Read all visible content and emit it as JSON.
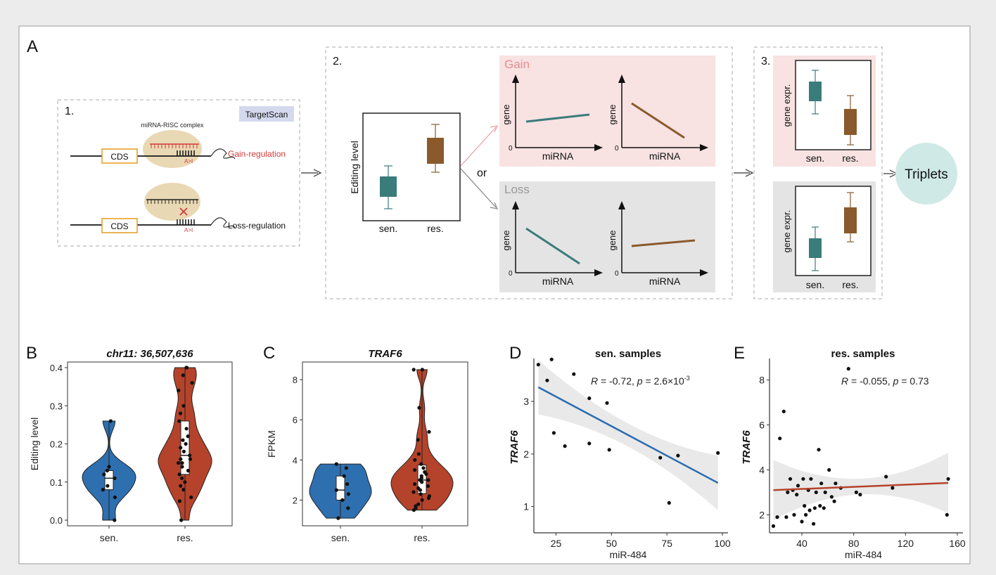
{
  "panelA": {
    "label": "A",
    "box1": {
      "step": "1.",
      "badge": "TargetScan",
      "complex_label": "miRNA-RISC complex",
      "cds": "CDS",
      "ai": "A>I",
      "gain_label": "Gain-regulation",
      "loss_label": "Loss-regulation"
    },
    "box2": {
      "step": "2.",
      "ylabel": "Editing level",
      "x_sen": "sen.",
      "x_res": "res.",
      "or": "or",
      "gain_title": "Gain",
      "loss_title": "Loss",
      "gene": "gene",
      "mirna": "miRNA",
      "zero": "0"
    },
    "box3": {
      "step": "3.",
      "ylabel": "gene expr.",
      "x_sen": "sen.",
      "x_res": "res."
    },
    "triplets": "Triplets"
  },
  "chart_data": [
    {
      "panel": "B",
      "type": "violin",
      "title": "chr11: 36,507,636",
      "ylabel": "Editing level",
      "categories": [
        "sen.",
        "res."
      ],
      "ylim": [
        0,
        0.4
      ],
      "yticks": [
        0.0,
        0.1,
        0.2,
        0.3,
        0.4
      ],
      "ytick_labels": [
        "0.0",
        "0.1",
        "0.2",
        "0.3",
        "0.4"
      ],
      "colors": {
        "sen.": "#2e6fb0",
        "res.": "#b5432b"
      },
      "points": {
        "sen.": [
          0.0,
          0.06,
          0.08,
          0.09,
          0.11,
          0.12,
          0.13,
          0.14,
          0.26
        ],
        "res.": [
          0.0,
          0.05,
          0.06,
          0.08,
          0.09,
          0.1,
          0.11,
          0.12,
          0.13,
          0.14,
          0.15,
          0.15,
          0.16,
          0.16,
          0.17,
          0.18,
          0.19,
          0.2,
          0.21,
          0.22,
          0.24,
          0.26,
          0.28,
          0.3,
          0.34,
          0.36,
          0.38,
          0.4,
          0.4
        ]
      }
    },
    {
      "panel": "C",
      "type": "violin",
      "title": "TRAF6",
      "ylabel": "FPKM",
      "categories": [
        "sen.",
        "res."
      ],
      "ylim": [
        1,
        8.6
      ],
      "yticks": [
        2,
        4,
        6,
        8
      ],
      "ytick_labels": [
        "2",
        "4",
        "6",
        "8"
      ],
      "colors": {
        "sen.": "#2e6fb0",
        "res.": "#b5432b"
      },
      "points": {
        "sen.": [
          1.1,
          1.6,
          2.0,
          2.3,
          2.5,
          2.8,
          3.2,
          3.6,
          3.8
        ],
        "res.": [
          1.5,
          1.6,
          1.7,
          1.8,
          2.0,
          2.1,
          2.2,
          2.3,
          2.4,
          2.5,
          2.6,
          2.7,
          2.8,
          2.9,
          3.0,
          3.0,
          3.1,
          3.2,
          3.3,
          3.4,
          3.5,
          3.6,
          3.8,
          4.0,
          4.3,
          5.0,
          5.4,
          6.6,
          8.5,
          8.5
        ]
      }
    },
    {
      "panel": "D",
      "type": "scatter",
      "title": "sen. samples",
      "xlabel": "miR-484",
      "ylabel": "TRAF6",
      "stat_r": "-0.72",
      "stat_p": "2.6×10",
      "stat_exp": "-3",
      "xlim": [
        15,
        100
      ],
      "ylim": [
        0.5,
        3.75
      ],
      "xticks": [
        25,
        50,
        75,
        100
      ],
      "yticks": [
        1,
        2,
        3
      ],
      "points": [
        [
          17,
          3.7
        ],
        [
          21,
          3.4
        ],
        [
          23,
          3.8
        ],
        [
          24,
          2.4
        ],
        [
          29,
          2.15
        ],
        [
          33,
          3.52
        ],
        [
          40,
          3.06
        ],
        [
          40,
          2.2
        ],
        [
          48,
          2.97
        ],
        [
          49,
          2.08
        ],
        [
          72,
          1.93
        ],
        [
          76,
          1.07
        ],
        [
          80,
          1.97
        ],
        [
          98,
          2.02
        ]
      ],
      "fit": {
        "x": [
          17,
          98
        ],
        "y": [
          3.27,
          1.45
        ]
      },
      "line_color": "#2b6cb0"
    },
    {
      "panel": "E",
      "type": "scatter",
      "title": "res. samples",
      "xlabel": "miR-484",
      "ylabel": "TRAF6",
      "stat_r": "-0.055",
      "stat_p": "0.73",
      "xlim": [
        15,
        160
      ],
      "ylim": [
        1.2,
        8.8
      ],
      "xticks": [
        40,
        80,
        120,
        160
      ],
      "yticks": [
        2,
        4,
        6,
        8
      ],
      "points": [
        [
          18,
          1.5
        ],
        [
          21,
          1.9
        ],
        [
          23,
          5.4
        ],
        [
          26,
          6.6
        ],
        [
          28,
          1.9
        ],
        [
          29,
          3.0
        ],
        [
          31,
          3.6
        ],
        [
          33,
          3.1
        ],
        [
          34,
          2.0
        ],
        [
          36,
          2.9
        ],
        [
          37,
          3.3
        ],
        [
          40,
          1.7
        ],
        [
          41,
          3.6
        ],
        [
          42,
          2.4
        ],
        [
          43,
          2.0
        ],
        [
          45,
          3.1
        ],
        [
          46,
          2.2
        ],
        [
          47,
          3.6
        ],
        [
          49,
          1.6
        ],
        [
          50,
          2.3
        ],
        [
          51,
          3.0
        ],
        [
          53,
          4.9
        ],
        [
          54,
          2.4
        ],
        [
          55,
          3.4
        ],
        [
          57,
          2.3
        ],
        [
          58,
          3.0
        ],
        [
          61,
          4.0
        ],
        [
          63,
          2.8
        ],
        [
          65,
          2.6
        ],
        [
          66,
          3.4
        ],
        [
          70,
          3.2
        ],
        [
          76,
          8.5
        ],
        [
          82,
          3.0
        ],
        [
          85,
          2.9
        ],
        [
          105,
          3.7
        ],
        [
          110,
          3.2
        ],
        [
          152,
          2.0
        ],
        [
          153,
          3.6
        ]
      ],
      "fit": {
        "x": [
          18,
          153
        ],
        "y": [
          3.1,
          3.42
        ]
      },
      "line_color": "#b5432b"
    }
  ]
}
